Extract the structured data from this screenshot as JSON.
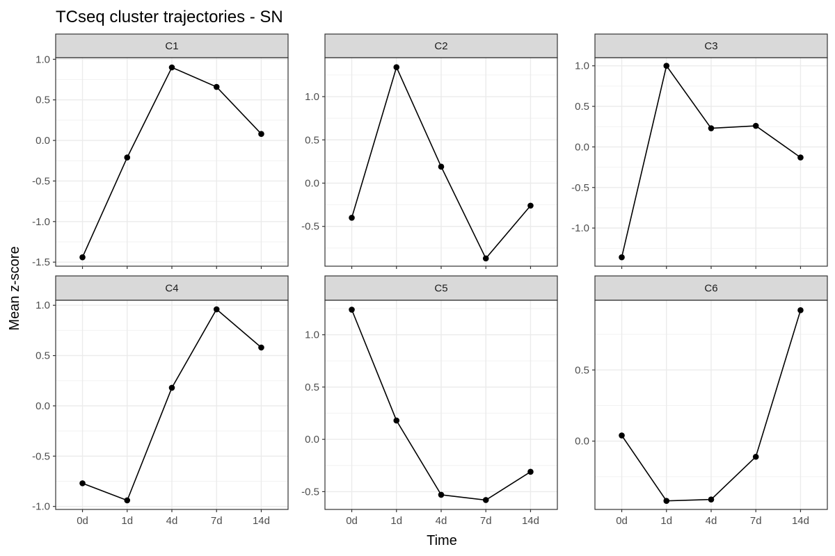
{
  "chart_data": {
    "type": "line",
    "title": "TCseq cluster trajectories - SN",
    "xlabel": "Time",
    "ylabel": "Mean z-score",
    "categories": [
      "0d",
      "1d",
      "4d",
      "7d",
      "14d"
    ],
    "grid": true,
    "colors": {
      "line": "#000000",
      "point": "#000000",
      "strip_fill": "#d9d9d9",
      "strip_border": "#333333",
      "grid_major": "#ebebeb",
      "grid_minor": "#f2f2f2",
      "panel_border": "#333333"
    },
    "facets": [
      {
        "label": "C1",
        "values": [
          -1.44,
          -0.21,
          0.9,
          0.66,
          0.08
        ],
        "ylim": [
          -1.55,
          1.02
        ],
        "yticks": [
          1.0,
          0.5,
          0.0,
          -0.5,
          -1.0,
          -1.5
        ],
        "ytick_labels": [
          "1.0",
          "0.5",
          "0.0",
          "-0.5",
          "-1.0",
          "-1.5"
        ]
      },
      {
        "label": "C2",
        "values": [
          -0.4,
          1.34,
          0.19,
          -0.87,
          -0.26
        ],
        "ylim": [
          -0.96,
          1.45
        ],
        "yticks": [
          1.0,
          0.5,
          0.0,
          -0.5
        ],
        "ytick_labels": [
          "1.0",
          "0.5",
          "0.0",
          "-0.5"
        ]
      },
      {
        "label": "C3",
        "values": [
          -1.36,
          1.0,
          0.23,
          0.26,
          -0.13
        ],
        "ylim": [
          -1.47,
          1.1
        ],
        "yticks": [
          1.0,
          0.5,
          0.0,
          -0.5,
          -1.0
        ],
        "ytick_labels": [
          "1.0",
          "0.5",
          "0.0",
          "-0.5",
          "-1.0"
        ]
      },
      {
        "label": "C4",
        "values": [
          -0.77,
          -0.94,
          0.18,
          0.96,
          0.58
        ],
        "ylim": [
          -1.03,
          1.05
        ],
        "yticks": [
          1.0,
          0.5,
          0.0,
          -0.5,
          -1.0
        ],
        "ytick_labels": [
          "1.0",
          "0.5",
          "0.0",
          "-0.5",
          "-1.0"
        ]
      },
      {
        "label": "C5",
        "values": [
          1.24,
          0.18,
          -0.53,
          -0.58,
          -0.31
        ],
        "ylim": [
          -0.67,
          1.33
        ],
        "yticks": [
          1.0,
          0.5,
          0.0,
          -0.5
        ],
        "ytick_labels": [
          "1.0",
          "0.5",
          "0.0",
          "-0.5"
        ]
      },
      {
        "label": "C6",
        "values": [
          0.04,
          -0.42,
          -0.41,
          -0.11,
          0.92
        ],
        "ylim": [
          -0.48,
          0.99
        ],
        "yticks": [
          0.5,
          0.0
        ],
        "ytick_labels": [
          "0.5",
          "0.0"
        ]
      }
    ]
  }
}
